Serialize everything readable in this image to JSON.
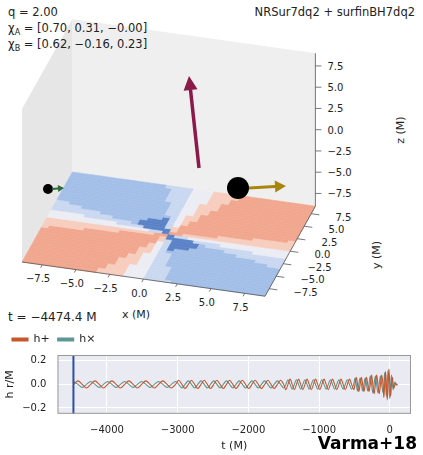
{
  "header": {
    "title": "NRSur7dq2 + surfinBH7dq2",
    "parameters": [
      {
        "text": "q = 2.00"
      },
      {
        "text": "χ",
        "sub": "A",
        "rest": " = [0.70, 0.31, −0.00]"
      },
      {
        "text": "χ",
        "sub": "B",
        "rest": " = [0.62, −0.16, 0.23]"
      }
    ]
  },
  "panel_3d": {
    "xlabel": "x (M)",
    "ylabel": "y (M)",
    "zlabel": "z (M)",
    "xlim": [
      -9,
      9
    ],
    "ylim": [
      -9,
      9
    ],
    "zlim": [
      -9,
      9
    ],
    "xticks": [
      {
        "value": -7.5,
        "label": "−7.5"
      },
      {
        "value": -5,
        "label": "−5.0"
      },
      {
        "value": -2.5,
        "label": "−2.5"
      },
      {
        "value": 0,
        "label": "0.0"
      },
      {
        "value": 2.5,
        "label": "2.5"
      },
      {
        "value": 5,
        "label": "5.0"
      },
      {
        "value": 7.5,
        "label": "7.5"
      }
    ],
    "yticks": [
      {
        "value": -7.5,
        "label": "−7.5"
      },
      {
        "value": -5,
        "label": "−5.0"
      },
      {
        "value": -2.5,
        "label": "−2.5"
      },
      {
        "value": 0,
        "label": "0.0"
      },
      {
        "value": 2.5,
        "label": "2.5"
      },
      {
        "value": 5,
        "label": "5.0"
      },
      {
        "value": 7.5,
        "label": "7.5"
      }
    ],
    "zticks": [
      {
        "value": -7.5,
        "label": "−7.5"
      },
      {
        "value": -5,
        "label": "−5.0"
      },
      {
        "value": -2.5,
        "label": "−2.5"
      },
      {
        "value": 0,
        "label": "0.0"
      },
      {
        "value": 2.5,
        "label": "2.5"
      },
      {
        "value": 5,
        "label": "5.0"
      },
      {
        "value": 7.5,
        "label": "7.5"
      }
    ]
  },
  "current_time": {
    "value": -4474.4,
    "label": "t = −4474.4 M"
  },
  "credit": "Varma+18",
  "chart_data": {
    "type": "line",
    "xlabel": "t (M)",
    "ylabel": "h r/M",
    "x": [
      -4470,
      -4410,
      -4350,
      -4290,
      -4230,
      -4170,
      -4110,
      -4050,
      -3990,
      -3930,
      -3870,
      -3810,
      -3750,
      -3690,
      -3630,
      -3570,
      -3510,
      -3450,
      -3390,
      -3330,
      -3270,
      -3210,
      -3150,
      -3090,
      -3030,
      -2985,
      -2940,
      -2895,
      -2850,
      -2805,
      -2760,
      -2715,
      -2670,
      -2625,
      -2580,
      -2535,
      -2490,
      -2445,
      -2400,
      -2355,
      -2310,
      -2265,
      -2220,
      -2175,
      -2130,
      -2085,
      -2040,
      -1995,
      -1950,
      -1905,
      -1860,
      -1815,
      -1770,
      -1725,
      -1680,
      -1635,
      -1590,
      -1545,
      -1500,
      -1470,
      -1440,
      -1410,
      -1380,
      -1350,
      -1320,
      -1290,
      -1260,
      -1230,
      -1200,
      -1170,
      -1140,
      -1110,
      -1080,
      -1050,
      -1020,
      -990,
      -960,
      -930,
      -900,
      -870,
      -840,
      -810,
      -780,
      -750,
      -720,
      -690,
      -660,
      -630,
      -600,
      -570,
      -540,
      -510,
      -492,
      -474,
      -456,
      -438,
      -420,
      -402,
      -384,
      -366,
      -348,
      -330,
      -312,
      -294,
      -276,
      -258,
      -240,
      -222,
      -204,
      -186,
      -168,
      -150,
      -132,
      -114,
      -96,
      -84,
      -72,
      -60,
      -48,
      -36,
      -24,
      -12,
      0,
      12,
      24,
      36,
      48,
      60,
      72,
      84,
      96,
      108
    ],
    "series": [
      {
        "name": "h+",
        "color": "#c4582c",
        "values": [
          0,
          0.03,
          0,
          -0.03,
          0,
          0.03,
          0,
          -0.03,
          0,
          0.03,
          0,
          -0.03,
          0,
          0.03,
          0,
          -0.03,
          0,
          0.03,
          0,
          -0.03,
          0,
          0.03,
          0,
          -0.03,
          0,
          0.035,
          0,
          -0.035,
          0,
          0.035,
          0,
          -0.035,
          0,
          0.035,
          0,
          -0.035,
          0,
          0.035,
          0,
          -0.035,
          0,
          0.035,
          0,
          -0.035,
          0,
          0.035,
          0,
          -0.035,
          0,
          0.035,
          0,
          -0.035,
          0,
          0.035,
          0,
          -0.035,
          0,
          0.035,
          0,
          -0.045,
          0,
          0.045,
          0,
          -0.045,
          0,
          0.045,
          0,
          -0.045,
          0,
          0.045,
          0,
          -0.045,
          0,
          0.045,
          0,
          -0.045,
          0,
          0.045,
          0,
          -0.045,
          0,
          0.045,
          0,
          -0.045,
          0,
          0.045,
          0,
          -0.045,
          0,
          0.045,
          0,
          -0.045,
          0,
          0.06,
          0,
          -0.06,
          0,
          0.06,
          0,
          -0.06,
          0,
          0.06,
          0,
          -0.06,
          0,
          0.08,
          0,
          -0.08,
          0,
          0.08,
          0,
          -0.08,
          0,
          0.08,
          0,
          -0.11,
          0,
          0.11,
          0,
          -0.13,
          0,
          0.13,
          0,
          -0.1,
          0,
          0.06,
          0,
          -0.03,
          0,
          0.012,
          0,
          -0.003
        ]
      },
      {
        "name": "h×",
        "color": "#5e9696",
        "values": [
          0.025,
          0,
          -0.025,
          0,
          0.025,
          0,
          -0.025,
          0,
          0.025,
          0,
          -0.025,
          0,
          0.025,
          0,
          -0.025,
          0,
          0.025,
          0,
          -0.025,
          0,
          0.025,
          0,
          -0.025,
          0,
          0.025,
          0,
          -0.03,
          0,
          0.03,
          0,
          -0.03,
          0,
          0.03,
          0,
          -0.03,
          0,
          0.03,
          0,
          -0.03,
          0,
          0.03,
          0,
          -0.03,
          0,
          0.03,
          0,
          -0.03,
          0,
          0.03,
          0,
          -0.03,
          0,
          0.03,
          0,
          -0.03,
          0,
          0.03,
          0,
          -0.03,
          0,
          0.04,
          0,
          -0.04,
          0,
          0.04,
          0,
          -0.04,
          0,
          0.04,
          0,
          -0.04,
          0,
          0.04,
          0,
          -0.04,
          0,
          0.04,
          0,
          -0.04,
          0,
          0.04,
          0,
          -0.04,
          0,
          0.04,
          0,
          -0.04,
          0,
          0.04,
          0,
          -0.04,
          0,
          0.055,
          0,
          -0.055,
          0,
          0.055,
          0,
          -0.055,
          0,
          0.055,
          0,
          -0.055,
          0,
          0.07,
          0,
          -0.07,
          0,
          0.07,
          0,
          -0.07,
          0,
          0.07,
          0,
          -0.07,
          0,
          0.1,
          0,
          -0.1,
          0,
          0.12,
          0,
          -0.12,
          0,
          0.08,
          0,
          -0.045,
          0,
          0.02,
          0,
          -0.006,
          0
        ]
      }
    ],
    "xlim": [
      -4700,
      300
    ],
    "ylim": [
      -0.25,
      0.25
    ],
    "xticks": [
      {
        "value": -4000,
        "label": "−4000"
      },
      {
        "value": -3000,
        "label": "−3000"
      },
      {
        "value": -2000,
        "label": "−2000"
      },
      {
        "value": -1000,
        "label": "−1000"
      },
      0
    ],
    "yticks": [
      {
        "value": -0.2,
        "label": "−0.2"
      },
      {
        "value": 0,
        "label": "0.0"
      },
      0.2
    ],
    "grid": true,
    "legend": "top"
  }
}
